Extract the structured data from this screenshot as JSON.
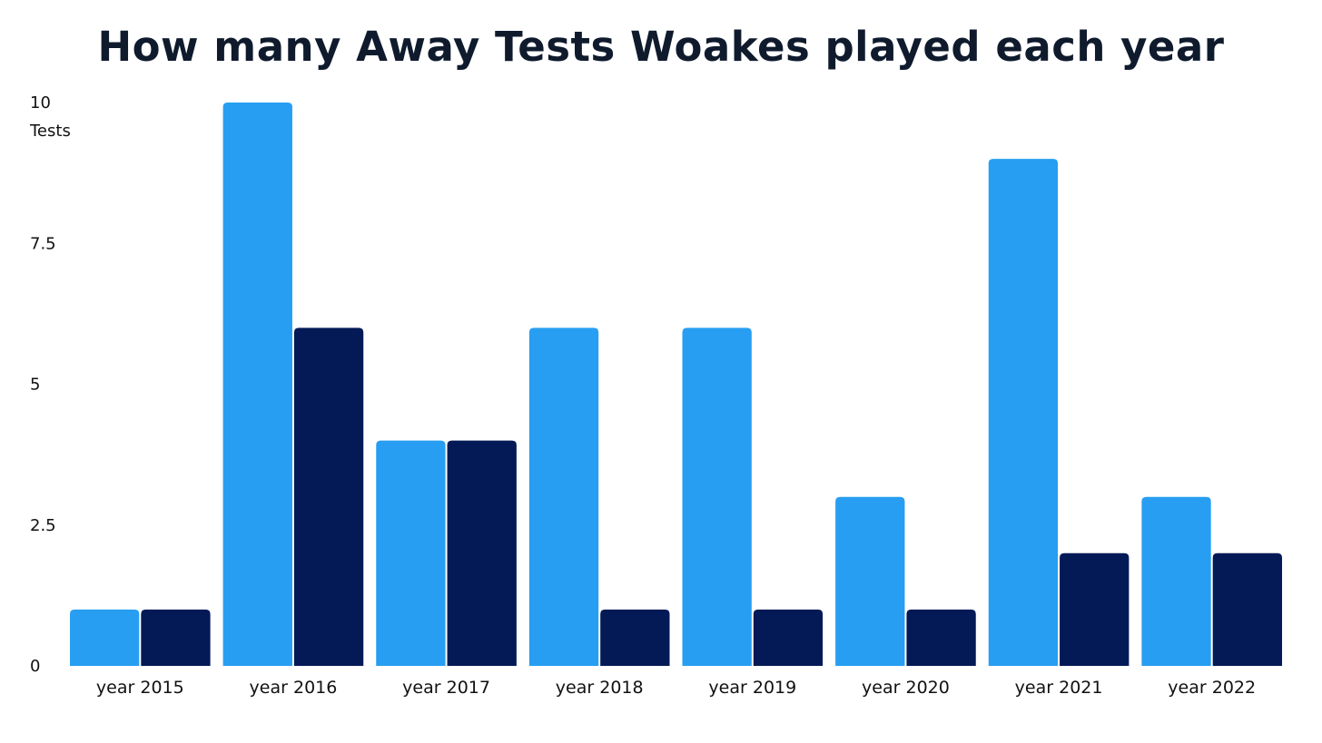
{
  "chart_data": {
    "type": "bar",
    "title": "How many Away Tests Woakes played each year",
    "ylabel": "Tests",
    "xlabel": "",
    "ylim": [
      0,
      10
    ],
    "yticks": [
      0,
      2.5,
      5,
      7.5,
      10
    ],
    "ytick_labels": [
      "0",
      "2.5",
      "5",
      "7.5",
      "10"
    ],
    "grid": false,
    "categories": [
      "year 2015",
      "year 2016",
      "year 2017",
      "year 2018",
      "year 2019",
      "year 2020",
      "year 2021",
      "year 2022"
    ],
    "series": [
      {
        "values": [
          1,
          10,
          4,
          6,
          6,
          3,
          9,
          3
        ],
        "color": "#279ef1"
      },
      {
        "values": [
          1,
          6,
          4,
          1,
          1,
          1,
          2,
          2
        ],
        "color": "#041a57"
      }
    ]
  }
}
